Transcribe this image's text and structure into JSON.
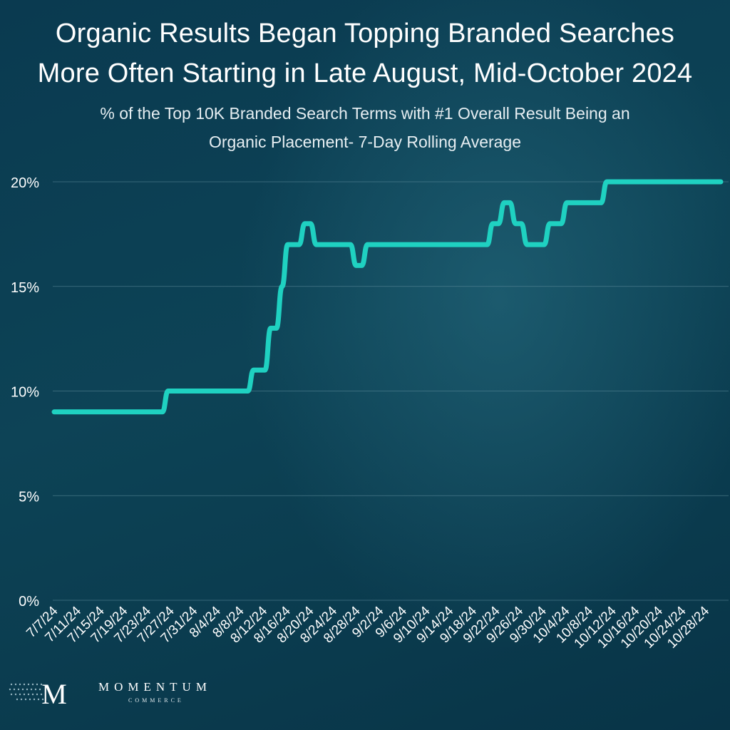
{
  "chart_data": {
    "type": "line",
    "title": "Organic Results Began Topping Branded Searches More Often Starting in Late August, Mid-October 2024",
    "title_lines": [
      "Organic Results Began Topping Branded Searches",
      "More Often Starting in Late August, Mid-October 2024"
    ],
    "subtitle_lines": [
      "% of the Top 10K Branded Search Terms with #1 Overall Result Being an",
      "Organic Placement- 7-Day Rolling Average"
    ],
    "xlabel": "",
    "ylabel": "",
    "start_date": "7/7/24",
    "x_tick_labels": [
      "7/7/24",
      "7/11/24",
      "7/15/24",
      "7/19/24",
      "7/23/24",
      "7/27/24",
      "7/31/24",
      "8/4/24",
      "8/8/24",
      "8/12/24",
      "8/16/24",
      "8/20/24",
      "8/24/24",
      "8/28/24",
      "9/2/24",
      "9/6/24",
      "9/10/24",
      "9/14/24",
      "9/18/24",
      "9/22/24",
      "9/26/24",
      "9/30/24",
      "10/4/24",
      "10/8/24",
      "10/12/24",
      "10/16/24",
      "10/20/24",
      "10/24/24",
      "10/28/24"
    ],
    "y_ticks": [
      0,
      5,
      10,
      15,
      20
    ],
    "y_tick_labels": [
      "0%",
      "5%",
      "10%",
      "15%",
      "20%"
    ],
    "ylim": [
      0,
      20
    ],
    "grid": true,
    "line_color": "#1fd1c1",
    "series": [
      {
        "name": "",
        "x": [
          "7/7/24",
          "7/26/24",
          "7/27/24",
          "8/10/24",
          "8/11/24",
          "8/13/24",
          "8/14/24",
          "8/15/24",
          "8/16/24",
          "8/17/24",
          "8/19/24",
          "8/20/24",
          "8/21/24",
          "8/22/24",
          "8/23/24",
          "8/28/24",
          "8/29/24",
          "8/30/24",
          "8/31/24",
          "9/1/24",
          "9/2/24",
          "9/6/24",
          "9/7/24",
          "9/8/24",
          "9/9/24",
          "9/21/24",
          "9/22/24",
          "9/23/24",
          "9/24/24",
          "9/25/24",
          "9/26/24",
          "9/27/24",
          "9/28/24",
          "9/29/24",
          "10/1/24",
          "10/2/24",
          "10/4/24",
          "10/5/24",
          "10/11/24",
          "10/12/24",
          "10/14/24",
          "10/15/24",
          "10/16/24",
          "10/17/24",
          "10/18/24",
          "10/19/24",
          "10/20/24",
          "11/1/24"
        ],
        "values": [
          9,
          9,
          10,
          10,
          11,
          11,
          13,
          13,
          15,
          17,
          17,
          18,
          18,
          17,
          17,
          17,
          16,
          16,
          17,
          17,
          17,
          17,
          17,
          17,
          17,
          17,
          18,
          18,
          19,
          19,
          18,
          18,
          17,
          17,
          17,
          18,
          18,
          19,
          19,
          20,
          20,
          20,
          20,
          20,
          20,
          20,
          20,
          20
        ]
      }
    ]
  },
  "brand": {
    "name": "MOMENTUM",
    "sub": "COMMERCE",
    "mark_letter": "M"
  }
}
